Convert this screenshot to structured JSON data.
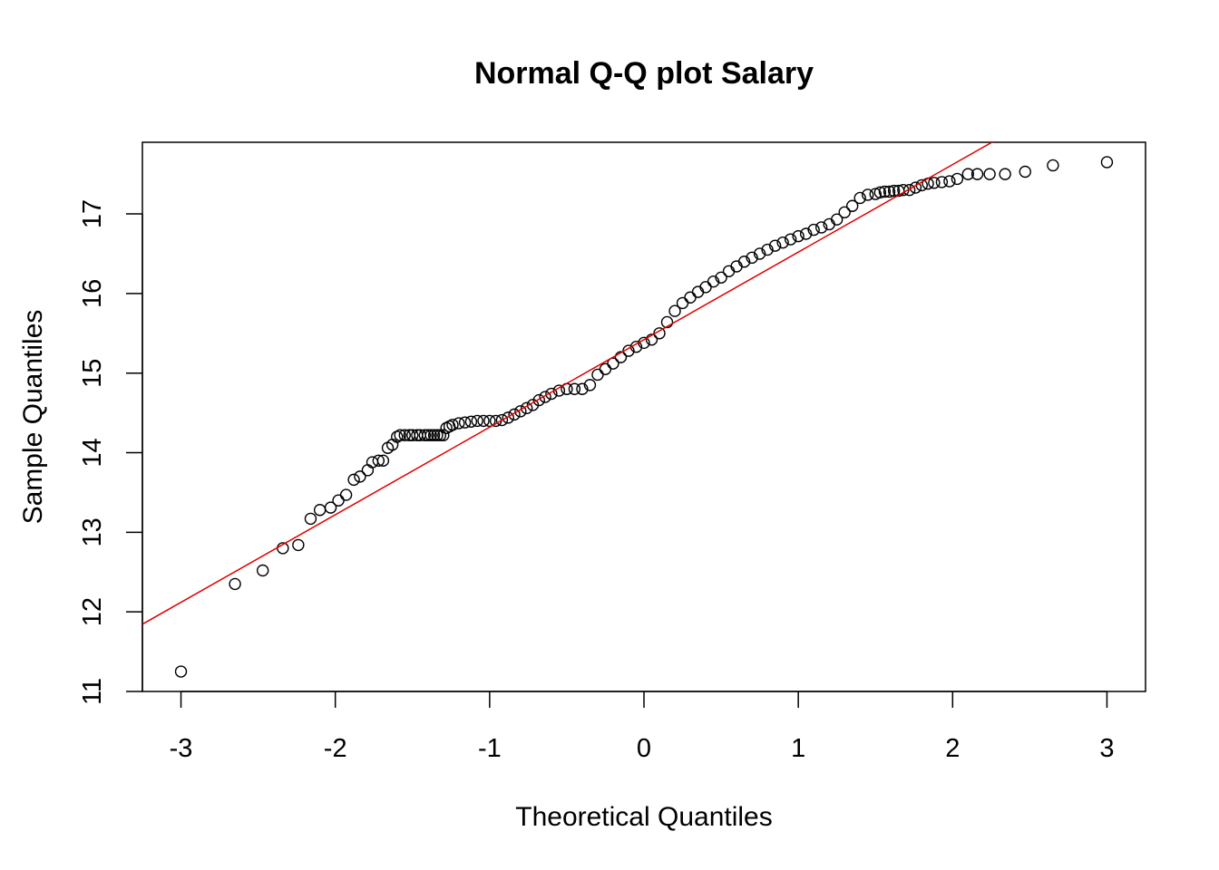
{
  "chart_data": {
    "type": "scatter",
    "title": "Normal Q-Q plot Salary",
    "xlabel": "Theoretical Quantiles",
    "ylabel": "Sample Quantiles",
    "xlim": [
      -3.25,
      3.25
    ],
    "ylim": [
      11.0,
      17.9
    ],
    "x_ticks": [
      -3,
      -2,
      -1,
      0,
      1,
      2,
      3
    ],
    "x_tick_labels": [
      "-3",
      "-2",
      "-1",
      "0",
      "1",
      "2",
      "3"
    ],
    "y_ticks": [
      11,
      12,
      13,
      14,
      15,
      16,
      17
    ],
    "y_tick_labels": [
      "11",
      "12",
      "13",
      "14",
      "15",
      "16",
      "17"
    ],
    "grid": false,
    "legend": "none",
    "colors": {
      "points": "#000000",
      "reference_line": "#e00000"
    },
    "reference_line": {
      "slope": 1.1,
      "intercept": 15.42
    },
    "series": [
      {
        "points_x": [
          -3.0,
          -2.65,
          -2.47,
          -2.34,
          -2.24,
          -2.16,
          -2.1,
          -2.03,
          -1.98,
          -1.93,
          -1.88,
          -1.84,
          -1.79,
          -1.76,
          -1.72,
          -1.69,
          -1.66,
          -1.63,
          -1.6,
          -1.58,
          -1.55,
          -1.52,
          -1.5,
          -1.47,
          -1.45,
          -1.42,
          -1.4,
          -1.38,
          -1.36,
          -1.34,
          -1.32,
          -1.3,
          -1.28,
          -1.26,
          -1.24,
          -1.2,
          -1.16,
          -1.12,
          -1.08,
          -1.04,
          -1.0,
          -0.96,
          -0.92,
          -0.88,
          -0.84,
          -0.8,
          -0.76,
          -0.72,
          -0.68,
          -0.64,
          -0.6,
          -0.55,
          -0.5,
          -0.45,
          -0.4,
          -0.35,
          -0.3,
          -0.25,
          -0.2,
          -0.15,
          -0.1,
          -0.05,
          0.0,
          0.05,
          0.1,
          0.15,
          0.2,
          0.25,
          0.3,
          0.35,
          0.4,
          0.45,
          0.5,
          0.55,
          0.6,
          0.65,
          0.7,
          0.75,
          0.8,
          0.85,
          0.9,
          0.95,
          1.0,
          1.05,
          1.1,
          1.15,
          1.2,
          1.25,
          1.3,
          1.35,
          1.4,
          1.45,
          1.5,
          1.53,
          1.56,
          1.59,
          1.62,
          1.65,
          1.68,
          1.72,
          1.76,
          1.8,
          1.84,
          1.88,
          1.93,
          1.98,
          2.03,
          2.1,
          2.16,
          2.24,
          2.34,
          2.47,
          2.65,
          3.0
        ],
        "points_y": [
          11.25,
          12.35,
          12.52,
          12.8,
          12.84,
          13.17,
          13.28,
          13.31,
          13.4,
          13.47,
          13.66,
          13.7,
          13.78,
          13.88,
          13.9,
          13.9,
          14.06,
          14.1,
          14.2,
          14.22,
          14.22,
          14.22,
          14.22,
          14.22,
          14.22,
          14.22,
          14.22,
          14.22,
          14.22,
          14.22,
          14.22,
          14.22,
          14.31,
          14.33,
          14.35,
          14.37,
          14.38,
          14.39,
          14.4,
          14.4,
          14.4,
          14.4,
          14.41,
          14.44,
          14.48,
          14.52,
          14.56,
          14.6,
          14.66,
          14.7,
          14.74,
          14.78,
          14.8,
          14.8,
          14.8,
          14.85,
          14.98,
          15.05,
          15.12,
          15.2,
          15.28,
          15.33,
          15.38,
          15.42,
          15.5,
          15.64,
          15.78,
          15.88,
          15.95,
          16.02,
          16.08,
          16.15,
          16.2,
          16.28,
          16.34,
          16.4,
          16.45,
          16.5,
          16.55,
          16.6,
          16.64,
          16.68,
          16.72,
          16.75,
          16.8,
          16.83,
          16.87,
          16.93,
          17.02,
          17.1,
          17.2,
          17.24,
          17.25,
          17.27,
          17.28,
          17.28,
          17.29,
          17.29,
          17.3,
          17.3,
          17.33,
          17.36,
          17.38,
          17.39,
          17.4,
          17.41,
          17.44,
          17.5,
          17.5,
          17.5,
          17.5,
          17.53,
          17.61,
          17.65
        ]
      }
    ]
  }
}
